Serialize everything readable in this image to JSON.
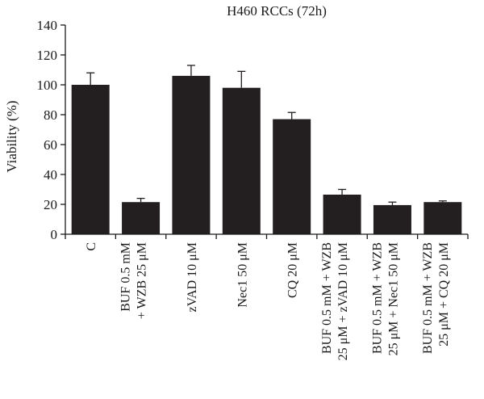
{
  "chart_data": {
    "type": "bar",
    "title": "H460 RCCs (72h)",
    "xlabel": "",
    "ylabel": "Viability (%)",
    "ylim": [
      0,
      140
    ],
    "yticks": [
      0,
      20,
      40,
      60,
      80,
      100,
      120,
      140
    ],
    "grid": false,
    "legend": "none",
    "bar_color": "#231f20",
    "categories": [
      [
        "C"
      ],
      [
        "BUF 0.5 mM",
        "+ WZB 25 μM"
      ],
      [
        "zVAD 10 μM"
      ],
      [
        "Nec1 50 μM"
      ],
      [
        "CQ 20 μM"
      ],
      [
        "BUF 0.5 mM + WZB",
        "25 μM + zVAD 10 μM"
      ],
      [
        "BUF 0.5 mM + WZB",
        "25 μM + Nec1 50 μM"
      ],
      [
        "BUF 0.5 mM + WZB",
        "25 μM + CQ 20 μM"
      ]
    ],
    "values": [
      100,
      21.5,
      106,
      98,
      77,
      26.5,
      19.5,
      21.5
    ],
    "errors": [
      8,
      2.5,
      7,
      11,
      4.5,
      3.5,
      2,
      0.8
    ]
  }
}
